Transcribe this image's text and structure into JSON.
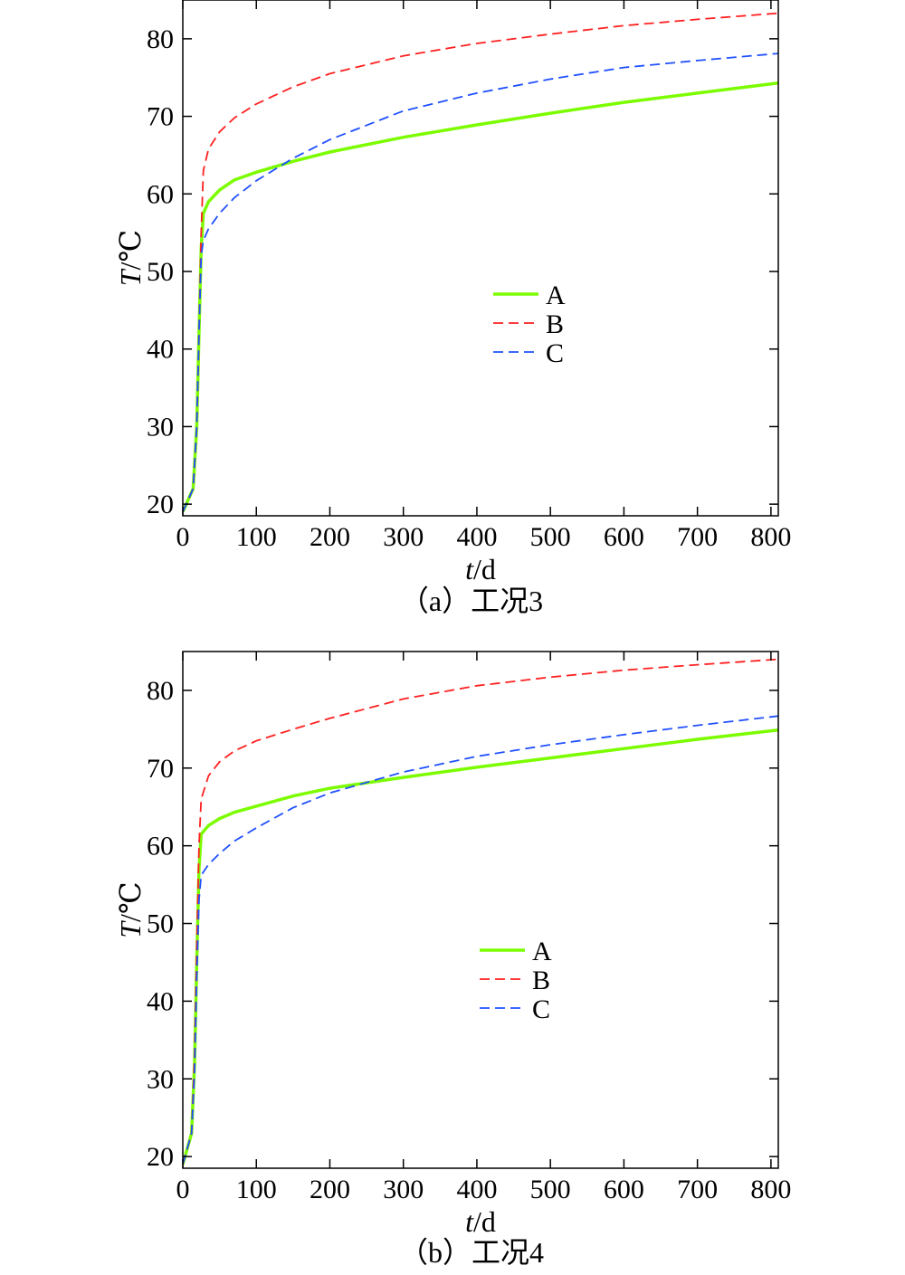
{
  "chart_data": [
    {
      "type": "line",
      "caption": "（a）工况3",
      "xlabel_italic": "t",
      "xlabel_unit": "/d",
      "ylabel_italic": "T",
      "ylabel_unit": "/℃",
      "xlim": [
        0,
        810
      ],
      "ylim": [
        18.5,
        85
      ],
      "xticks": [
        0,
        100,
        200,
        300,
        400,
        500,
        600,
        700,
        800
      ],
      "yticks": [
        20,
        30,
        40,
        50,
        60,
        70,
        80
      ],
      "legend_position": "center",
      "series": [
        {
          "name": "A",
          "color": "#7CFC00",
          "style": "solid",
          "x": [
            0,
            14,
            19,
            22,
            25,
            28,
            35,
            50,
            70,
            100,
            150,
            200,
            300,
            400,
            500,
            600,
            700,
            810
          ],
          "y": [
            19,
            22,
            30,
            42,
            53,
            57.5,
            59,
            60.5,
            61.8,
            62.8,
            64.2,
            65.4,
            67.3,
            68.9,
            70.4,
            71.8,
            73,
            74.3
          ]
        },
        {
          "name": "B",
          "color": "#FF2020",
          "style": "dashed",
          "x": [
            0,
            14,
            19,
            22,
            25,
            28,
            35,
            50,
            70,
            100,
            150,
            200,
            300,
            400,
            500,
            600,
            700,
            810
          ],
          "y": [
            19,
            22,
            30,
            42,
            55,
            63,
            65.8,
            68,
            69.8,
            71.6,
            73.8,
            75.5,
            77.8,
            79.4,
            80.6,
            81.7,
            82.5,
            83.3
          ]
        },
        {
          "name": "C",
          "color": "#2050FF",
          "style": "dashed",
          "x": [
            0,
            14,
            19,
            22,
            25,
            28,
            35,
            50,
            70,
            100,
            150,
            200,
            300,
            400,
            500,
            600,
            700,
            810
          ],
          "y": [
            19,
            22,
            30,
            42,
            52,
            54,
            55.5,
            57.5,
            59.5,
            61.7,
            64.6,
            67,
            70.7,
            73,
            74.8,
            76.3,
            77.2,
            78.1
          ]
        }
      ]
    },
    {
      "type": "line",
      "caption": "（b）工况4",
      "xlabel_italic": "t",
      "xlabel_unit": "/d",
      "ylabel_italic": "T",
      "ylabel_unit": "/℃",
      "xlim": [
        0,
        810
      ],
      "ylim": [
        18.5,
        85
      ],
      "xticks": [
        0,
        100,
        200,
        300,
        400,
        500,
        600,
        700,
        800
      ],
      "yticks": [
        20,
        30,
        40,
        50,
        60,
        70,
        80
      ],
      "legend_position": "center",
      "series": [
        {
          "name": "A",
          "color": "#7CFC00",
          "style": "solid",
          "x": [
            0,
            12,
            16,
            19,
            22,
            25,
            35,
            50,
            70,
            100,
            150,
            200,
            300,
            400,
            500,
            600,
            700,
            810
          ],
          "y": [
            19,
            23,
            32,
            45,
            57,
            61.5,
            62.6,
            63.5,
            64.3,
            65.1,
            66.4,
            67.4,
            68.8,
            70.1,
            71.3,
            72.5,
            73.7,
            74.9
          ]
        },
        {
          "name": "B",
          "color": "#FF2020",
          "style": "dashed",
          "x": [
            0,
            12,
            16,
            19,
            22,
            25,
            35,
            50,
            70,
            100,
            150,
            200,
            300,
            400,
            500,
            600,
            700,
            810
          ],
          "y": [
            19,
            23,
            33,
            47,
            60,
            66,
            69,
            70.8,
            72.2,
            73.5,
            75,
            76.4,
            78.9,
            80.6,
            81.7,
            82.6,
            83.3,
            84
          ]
        },
        {
          "name": "C",
          "color": "#2050FF",
          "style": "dashed",
          "x": [
            0,
            12,
            16,
            19,
            22,
            25,
            35,
            50,
            70,
            100,
            150,
            200,
            300,
            400,
            500,
            600,
            700,
            810
          ],
          "y": [
            19,
            23,
            31,
            43,
            53,
            56.2,
            57.6,
            59,
            60.6,
            62.3,
            64.9,
            66.8,
            69.5,
            71.5,
            73,
            74.3,
            75.5,
            76.7
          ]
        }
      ]
    }
  ]
}
